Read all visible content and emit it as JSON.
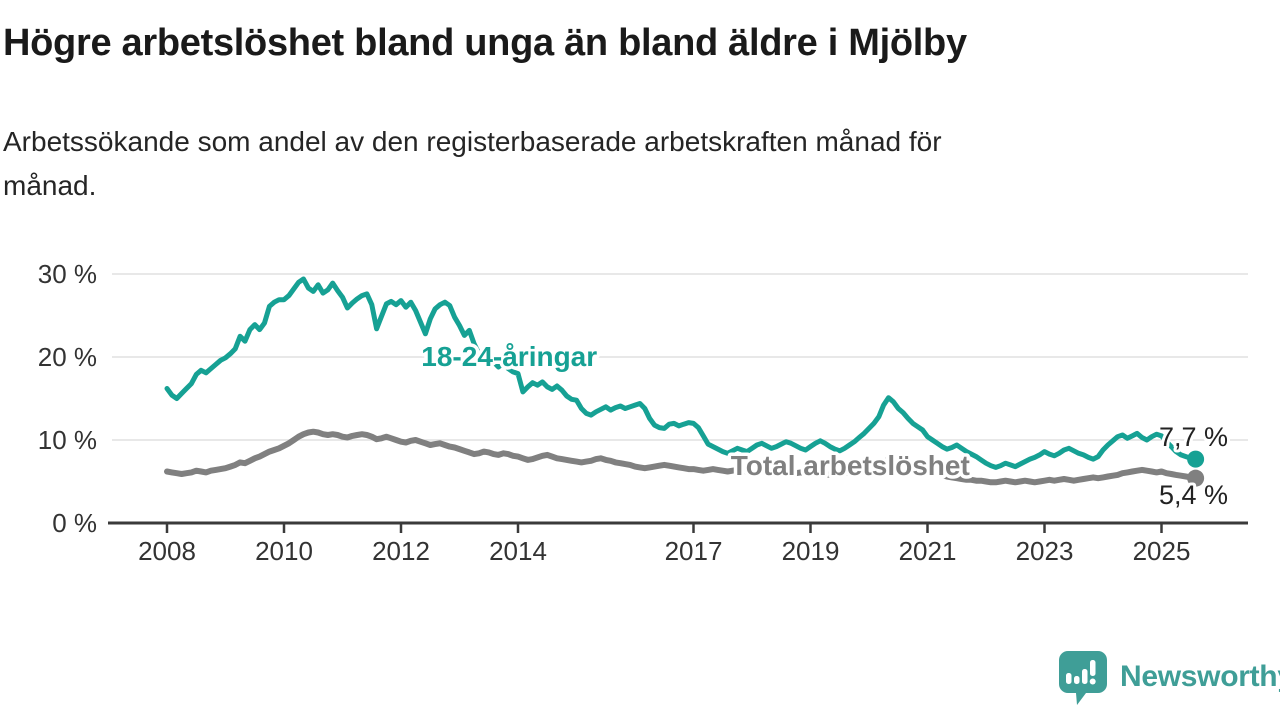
{
  "header": {
    "title": "Högre arbetslöshet bland unga än bland äldre i Mjölby",
    "subtitle_line1": "Arbetssökande som andel av den registerbaserade arbetskraften månad för",
    "subtitle_line2": "månad."
  },
  "footer": {
    "brand": "Newsworthy",
    "brand_color": "#3f9e97"
  },
  "chart_data": {
    "type": "line",
    "title": "Högre arbetslöshet bland unga än bland äldre i Mjölby",
    "subtitle": "Arbetssökande som andel av den registerbaserade arbetskraften månad för månad.",
    "unit": "%",
    "grid": "horizontal",
    "legend_position": "inline-labels",
    "x_axis": {
      "start": "2008-01",
      "end": "2025-08",
      "interval": "monthly",
      "ticks": [
        {
          "year": 2008,
          "label": "2008"
        },
        {
          "year": 2010,
          "label": "2010"
        },
        {
          "year": 2012,
          "label": "2012"
        },
        {
          "year": 2014,
          "label": "2014"
        },
        {
          "year": 2017,
          "label": "2017"
        },
        {
          "year": 2019,
          "label": "2019"
        },
        {
          "year": 2021,
          "label": "2021"
        },
        {
          "year": 2023,
          "label": "2023"
        },
        {
          "year": 2025,
          "label": "2025"
        }
      ]
    },
    "y_axis": {
      "ticks": [
        {
          "value": 0,
          "label": "0 %"
        },
        {
          "value": 10,
          "label": "10 %"
        },
        {
          "value": 20,
          "label": "20 %"
        },
        {
          "value": 30,
          "label": "30 %"
        }
      ],
      "range": [
        0,
        31.5
      ],
      "gridline_color": "#d9d9d9",
      "axis_color": "#3a3a3a",
      "tick_label_color": "#333333"
    },
    "end_label_color": "#222222",
    "series": [
      {
        "name": "Total arbetslöshet",
        "color": "#808080",
        "line_width": 6,
        "inline_label": {
          "text": "Total arbetslöshet",
          "x_year": 2019.68,
          "baseline_pct": 5.8
        },
        "end_label": {
          "text": "5,4 %",
          "dy": 26
        },
        "end_value": 5.4,
        "values": [
          6.2,
          6.1,
          6.0,
          5.9,
          6.0,
          6.1,
          6.3,
          6.2,
          6.1,
          6.3,
          6.4,
          6.5,
          6.6,
          6.8,
          7.0,
          7.3,
          7.2,
          7.5,
          7.8,
          8.0,
          8.3,
          8.6,
          8.8,
          9.0,
          9.3,
          9.6,
          10.0,
          10.4,
          10.7,
          10.9,
          11.0,
          10.9,
          10.7,
          10.6,
          10.7,
          10.6,
          10.4,
          10.3,
          10.5,
          10.6,
          10.7,
          10.6,
          10.4,
          10.1,
          10.2,
          10.4,
          10.2,
          10.0,
          9.8,
          9.7,
          9.9,
          10.0,
          9.8,
          9.6,
          9.4,
          9.5,
          9.6,
          9.4,
          9.2,
          9.1,
          8.9,
          8.7,
          8.5,
          8.3,
          8.4,
          8.6,
          8.5,
          8.3,
          8.2,
          8.4,
          8.3,
          8.1,
          8.0,
          7.8,
          7.6,
          7.7,
          7.9,
          8.1,
          8.2,
          8.0,
          7.8,
          7.7,
          7.6,
          7.5,
          7.4,
          7.3,
          7.4,
          7.5,
          7.7,
          7.8,
          7.6,
          7.5,
          7.3,
          7.2,
          7.1,
          7.0,
          6.8,
          6.7,
          6.6,
          6.7,
          6.8,
          6.9,
          7.0,
          6.9,
          6.8,
          6.7,
          6.6,
          6.5,
          6.5,
          6.4,
          6.3,
          6.4,
          6.5,
          6.4,
          6.3,
          6.2,
          6.3,
          6.4,
          6.3,
          6.2,
          6.3,
          6.4,
          6.3,
          6.2,
          6.1,
          6.2,
          6.3,
          6.2,
          6.1,
          6.0,
          6.1,
          6.0,
          6.0,
          6.1,
          6.0,
          5.9,
          5.8,
          5.9,
          6.0,
          6.1,
          6.0,
          6.1,
          6.2,
          6.3,
          6.5,
          6.7,
          7.0,
          7.4,
          7.6,
          7.5,
          7.4,
          7.2,
          7.1,
          6.9,
          6.8,
          6.6,
          6.4,
          6.2,
          6.0,
          5.8,
          5.6,
          5.5,
          5.4,
          5.3,
          5.2,
          5.2,
          5.1,
          5.1,
          5.0,
          4.9,
          4.9,
          5.0,
          5.1,
          5.0,
          4.9,
          5.0,
          5.1,
          5.0,
          4.9,
          5.0,
          5.1,
          5.2,
          5.1,
          5.2,
          5.3,
          5.2,
          5.1,
          5.2,
          5.3,
          5.4,
          5.5,
          5.4,
          5.5,
          5.6,
          5.7,
          5.8,
          6.0,
          6.1,
          6.2,
          6.3,
          6.4,
          6.3,
          6.2,
          6.1,
          6.2,
          6.0,
          5.9,
          5.8,
          5.7,
          5.6,
          5.5,
          5.4
        ]
      },
      {
        "name": "18-24-åringar",
        "color": "#16a194",
        "line_width": 5,
        "inline_label": {
          "text": "18-24-åringar",
          "x_year": 2013.85,
          "baseline_pct": 18.9
        },
        "end_label": {
          "text": "7,7 %",
          "dy": -13
        },
        "end_value": 7.7,
        "values": [
          16.2,
          15.4,
          15.0,
          15.6,
          16.2,
          16.8,
          17.9,
          18.4,
          18.1,
          18.6,
          19.1,
          19.6,
          19.9,
          20.4,
          21.0,
          22.5,
          21.9,
          23.3,
          23.9,
          23.3,
          24.1,
          26.1,
          26.6,
          26.9,
          26.9,
          27.4,
          28.2,
          29.0,
          29.4,
          28.3,
          27.9,
          28.7,
          27.7,
          28.1,
          28.9,
          28.0,
          27.2,
          25.9,
          26.5,
          27.0,
          27.4,
          27.6,
          26.3,
          23.4,
          24.9,
          26.4,
          26.7,
          26.3,
          26.8,
          26.0,
          26.6,
          25.6,
          24.2,
          22.8,
          24.6,
          25.8,
          26.3,
          26.6,
          26.2,
          24.8,
          23.8,
          22.6,
          23.2,
          21.6,
          20.4,
          19.8,
          20.6,
          19.4,
          18.8,
          19.3,
          18.6,
          18.2,
          18.0,
          15.8,
          16.4,
          16.9,
          16.6,
          17.0,
          16.4,
          16.1,
          16.5,
          16.0,
          15.3,
          14.9,
          14.8,
          13.8,
          13.2,
          13.0,
          13.4,
          13.7,
          14.0,
          13.6,
          13.9,
          14.1,
          13.8,
          14.0,
          14.2,
          14.4,
          13.8,
          12.6,
          11.8,
          11.5,
          11.4,
          11.9,
          12.0,
          11.7,
          11.9,
          12.1,
          12.0,
          11.5,
          10.5,
          9.5,
          9.2,
          8.9,
          8.6,
          8.4,
          8.7,
          9.0,
          8.8,
          8.6,
          9.0,
          9.4,
          9.6,
          9.3,
          9.0,
          9.2,
          9.5,
          9.8,
          9.6,
          9.3,
          9.0,
          8.8,
          9.2,
          9.6,
          9.9,
          9.6,
          9.2,
          8.9,
          8.7,
          9.0,
          9.4,
          9.8,
          10.3,
          10.8,
          11.4,
          12.0,
          12.8,
          14.2,
          15.1,
          14.6,
          13.8,
          13.3,
          12.6,
          12.0,
          11.6,
          11.2,
          10.4,
          10.0,
          9.6,
          9.2,
          8.9,
          9.1,
          9.4,
          9.0,
          8.6,
          8.3,
          8.0,
          7.6,
          7.2,
          6.9,
          6.7,
          6.9,
          7.2,
          7.0,
          6.8,
          7.1,
          7.4,
          7.7,
          7.9,
          8.2,
          8.6,
          8.3,
          8.1,
          8.4,
          8.8,
          9.0,
          8.7,
          8.4,
          8.2,
          7.9,
          7.7,
          8.0,
          8.8,
          9.4,
          9.9,
          10.4,
          10.6,
          10.2,
          10.5,
          10.8,
          10.3,
          10.0,
          10.4,
          10.7,
          10.5,
          9.8,
          9.2,
          8.6,
          8.2,
          8.0,
          7.8,
          7.7
        ]
      }
    ]
  }
}
